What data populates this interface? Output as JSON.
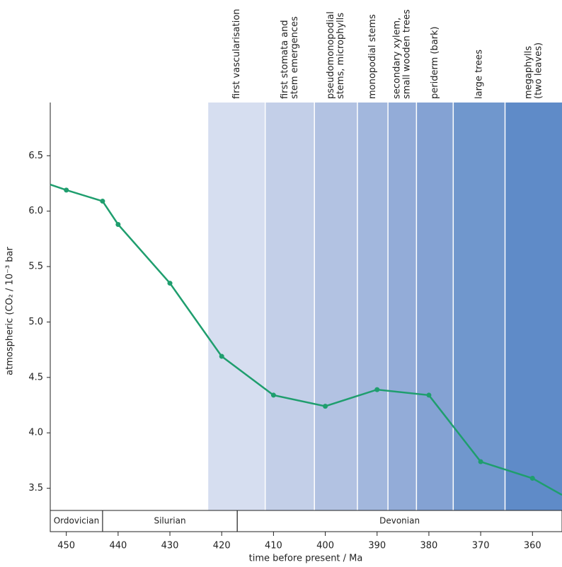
{
  "chart_data": {
    "type": "line",
    "y_label": "atmospheric (CO₂ / 10⁻³ bar",
    "x_label": "time before present / Ma",
    "xlim": [
      453.1,
      354.3
    ],
    "ylim": [
      3.3,
      6.98
    ],
    "xticks": [
      450,
      440,
      430,
      420,
      410,
      400,
      390,
      380,
      370,
      360
    ],
    "yticks": [
      3.5,
      {
        "value": 4.0,
        "label": "4.0"
      },
      4.5,
      {
        "value": 5.0,
        "label": "5.0"
      },
      5.5,
      {
        "value": 6.0,
        "label": "6.0"
      },
      6.5
    ],
    "series": [
      {
        "color": "#1f9e6e",
        "x": [
          453.1,
          450,
          443,
          440,
          430,
          420,
          410,
          400,
          390,
          380,
          370,
          360,
          354.3
        ],
        "values": [
          6.24,
          6.19,
          6.09,
          5.88,
          5.35,
          4.69,
          4.34,
          4.24,
          4.39,
          4.34,
          3.74,
          3.59,
          3.44
        ]
      }
    ],
    "stages": [
      {
        "label": [
          "first vascularisation"
        ],
        "start": 422.6,
        "end": 411.6,
        "color": "#d6def0"
      },
      {
        "label": [
          "first stomata and",
          "stem emergences"
        ],
        "start": 411.6,
        "end": 402.1,
        "color": "#c3cfe8"
      },
      {
        "label": [
          "pseudomonopodial",
          "stems, microphylls"
        ],
        "start": 402.1,
        "end": 393.8,
        "color": "#b2c2e2"
      },
      {
        "label": [
          "monopodial stems"
        ],
        "start": 393.8,
        "end": 387.9,
        "color": "#a2b7dd"
      },
      {
        "label": [
          "secondary xylem,",
          "small wooden trees"
        ],
        "start": 387.9,
        "end": 382.4,
        "color": "#93acd8"
      },
      {
        "label": [
          "periderm (bark)"
        ],
        "start": 382.4,
        "end": 375.3,
        "color": "#84a2d3"
      },
      {
        "label": [
          "large trees"
        ],
        "start": 375.3,
        "end": 365.3,
        "color": "#7097cd"
      },
      {
        "label": [
          "megaphylls",
          "(two leaves)"
        ],
        "start": 365.3,
        "end": 354.3,
        "color": "#5f8bc8"
      }
    ],
    "periods": [
      {
        "name": "Ordovician",
        "start": 453.1,
        "end": 443
      },
      {
        "name": "Silurian",
        "start": 443,
        "end": 417
      },
      {
        "name": "Devonian",
        "start": 417,
        "end": 354.3
      }
    ]
  }
}
